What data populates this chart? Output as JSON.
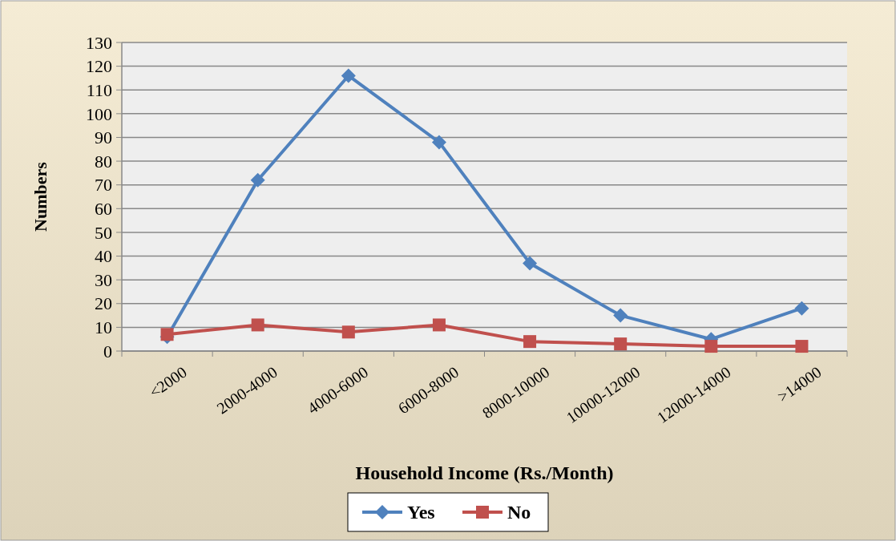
{
  "chart_data": {
    "type": "line",
    "xlabel": "Household Income (Rs./Month)",
    "ylabel": "Numbers",
    "categories": [
      "<2000",
      "2000-4000",
      "4000-6000",
      "6000-8000",
      "8000-10000",
      "10000-12000",
      "12000-14000",
      ">14000"
    ],
    "series": [
      {
        "name": "Yes",
        "color": "#4f81bd",
        "marker": "diamond",
        "values": [
          6,
          72,
          116,
          88,
          37,
          15,
          5,
          18
        ]
      },
      {
        "name": "No",
        "color": "#c0504d",
        "marker": "square",
        "values": [
          7,
          11,
          8,
          11,
          4,
          3,
          2,
          2
        ]
      }
    ],
    "ylim": [
      0,
      130
    ],
    "yticks": [
      0,
      10,
      20,
      30,
      40,
      50,
      60,
      70,
      80,
      90,
      100,
      110,
      120,
      130
    ],
    "grid": "y",
    "legend": "bottom"
  }
}
